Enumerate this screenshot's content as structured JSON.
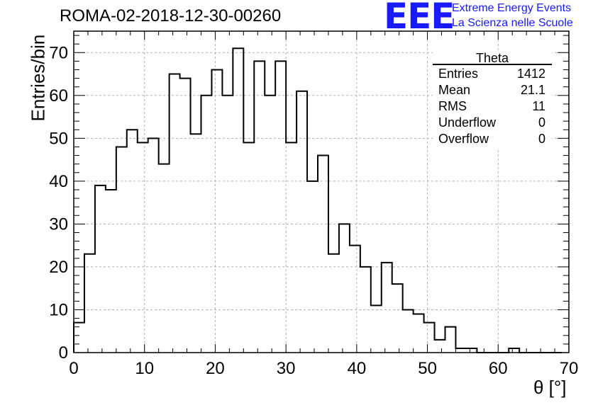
{
  "header": {
    "run_title": "ROMA-02-2018-12-30-00260",
    "logo_text": "EEE",
    "logo_line1": "Extreme Energy Events",
    "logo_line2": "La Scienza nelle Scuole"
  },
  "colors": {
    "logo": "#1a1aff",
    "histogram": "#000000",
    "grid": "#b0b0b0"
  },
  "stats_box": {
    "title": "Theta",
    "rows": [
      {
        "label": "Entries",
        "value": "1412"
      },
      {
        "label": "Mean",
        "value": "21.1"
      },
      {
        "label": "RMS",
        "value": "11"
      },
      {
        "label": "Underflow",
        "value": "0"
      },
      {
        "label": "Overflow",
        "value": "0"
      }
    ]
  },
  "chart_data": {
    "type": "bar",
    "style": "step-histogram",
    "title": "ROMA-02-2018-12-30-00260",
    "xlabel": "θ [°]",
    "ylabel": "Entries/bin",
    "xlim": [
      0,
      70
    ],
    "ylim": [
      0,
      75
    ],
    "grid": true,
    "bin_width": 1.5,
    "xticks": [
      0,
      10,
      20,
      30,
      40,
      50,
      60,
      70
    ],
    "yticks": [
      0,
      10,
      20,
      30,
      40,
      50,
      60,
      70
    ],
    "bin_edges": [
      0,
      1.5,
      3,
      4.5,
      6,
      7.5,
      9,
      10.5,
      12,
      13.5,
      15,
      16.5,
      18,
      19.5,
      21,
      22.5,
      24,
      25.5,
      27,
      28.5,
      30,
      31.5,
      33,
      34.5,
      36,
      37.5,
      39,
      40.5,
      42,
      43.5,
      45,
      46.5,
      48,
      49.5,
      51,
      52.5,
      54,
      55.5,
      57,
      58.5,
      60,
      61.5,
      63,
      64.5,
      66,
      67.5,
      69
    ],
    "values": [
      7,
      23,
      39,
      38,
      48,
      52,
      49,
      50,
      44,
      65,
      64,
      51,
      60,
      66,
      60,
      71,
      49,
      68,
      60,
      68,
      49,
      61,
      40,
      46,
      23,
      30,
      25,
      20,
      11,
      21,
      16,
      10,
      9,
      7,
      3,
      6,
      1,
      1,
      0,
      0,
      0,
      1,
      0,
      0,
      0,
      0
    ]
  }
}
